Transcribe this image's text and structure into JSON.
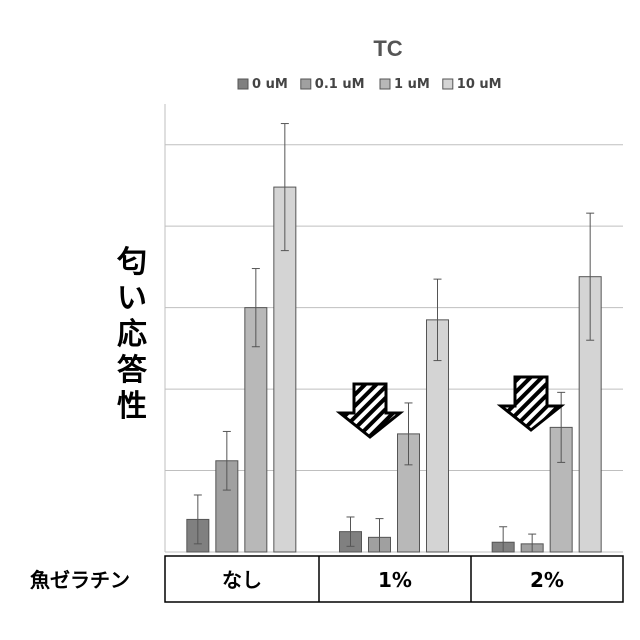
{
  "chart_data": {
    "type": "bar",
    "title": "TC",
    "ylabel": "匂い応答性",
    "row_label": "魚ゼラチン",
    "categories": [
      "なし",
      "1%",
      "2%"
    ],
    "series": [
      {
        "name": "0 uM",
        "values": [
          4,
          2.5,
          1.2
        ],
        "errors": [
          3,
          1.8,
          1.9
        ],
        "color": "#808080"
      },
      {
        "name": "0.1 uM",
        "values": [
          11.2,
          1.8,
          1
        ],
        "errors": [
          3.6,
          2.3,
          1.2
        ],
        "color": "#a0a0a0"
      },
      {
        "name": "1 uM",
        "values": [
          30,
          14.5,
          15.3
        ],
        "errors": [
          4.8,
          3.8,
          4.3
        ],
        "color": "#b8b8b8"
      },
      {
        "name": "10 uM",
        "values": [
          44.8,
          28.5,
          33.8
        ],
        "errors": [
          7.8,
          5,
          7.8
        ],
        "color": "#d4d4d4"
      }
    ],
    "ylim": [
      0,
      55
    ],
    "grid": true,
    "legend_position": "top",
    "annotations": [
      {
        "type": "down-arrow",
        "category": "1%"
      },
      {
        "type": "down-arrow",
        "category": "2%"
      }
    ]
  }
}
